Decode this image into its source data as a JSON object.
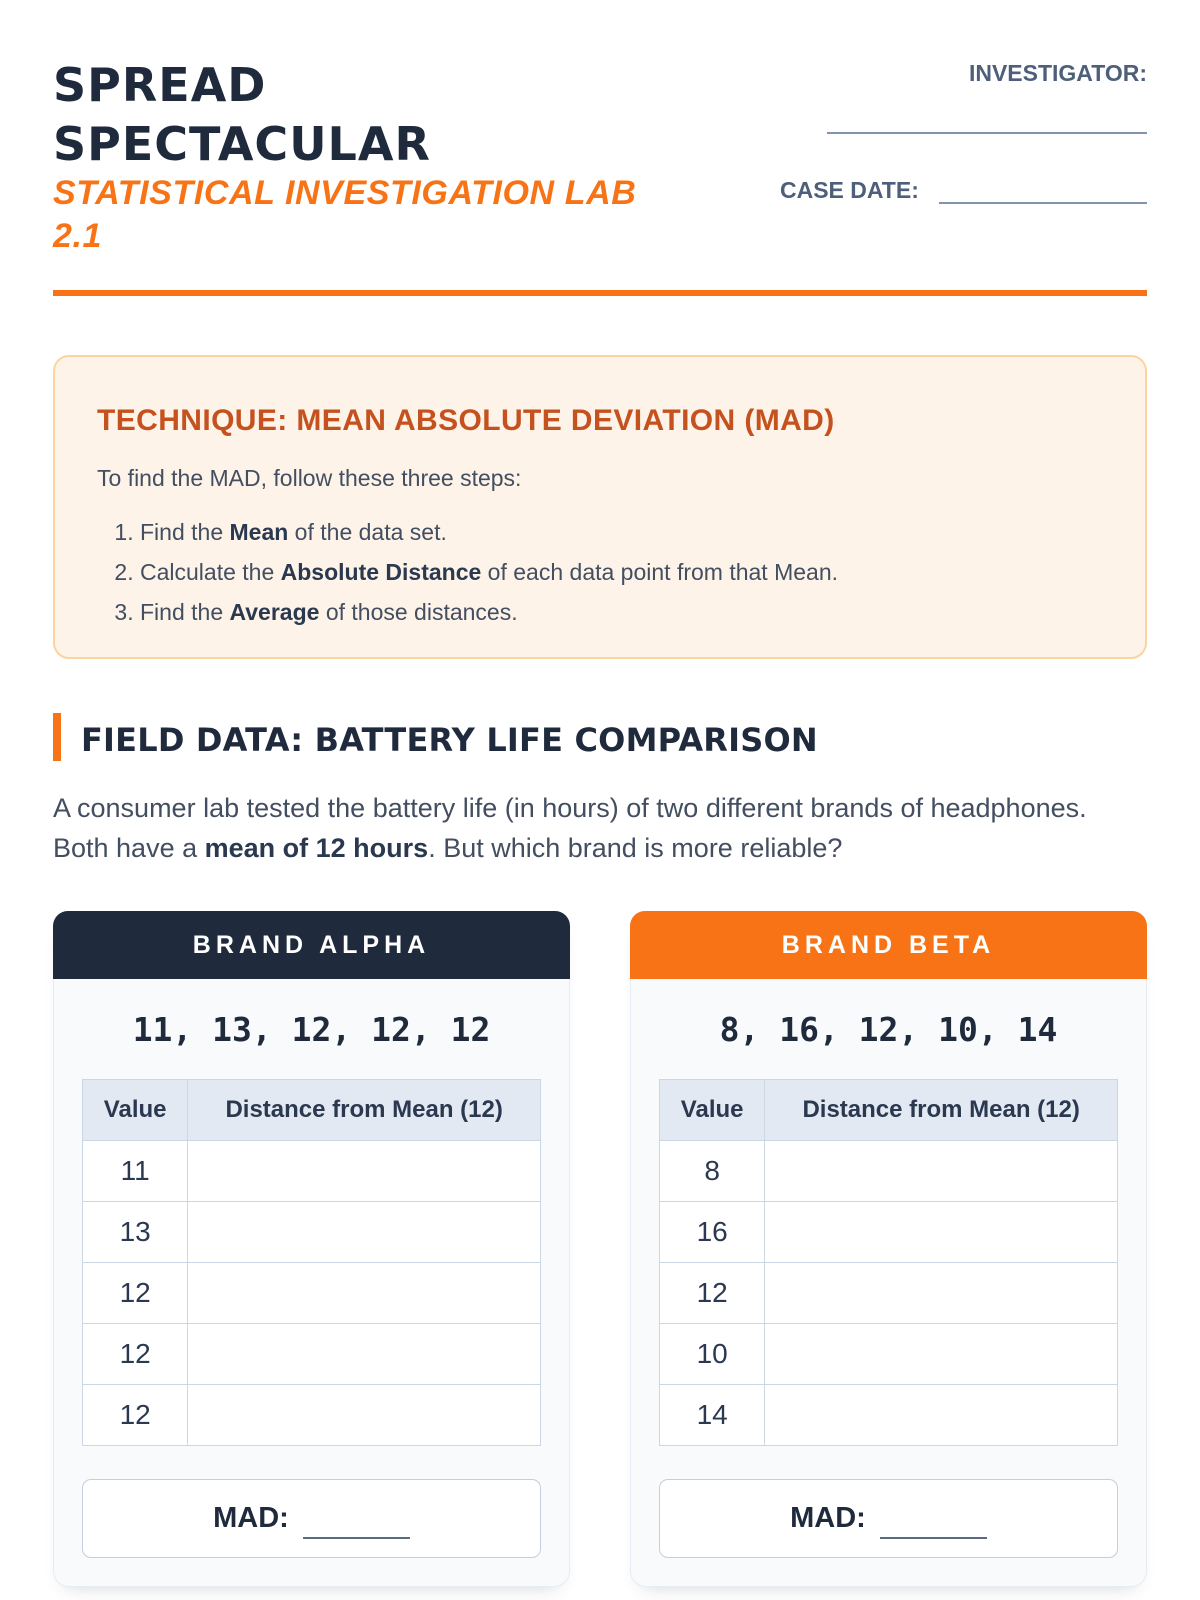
{
  "header": {
    "title": "SPREAD SPECTACULAR",
    "subtitle": "STATISTICAL INVESTIGATION LAB 2.1",
    "investigator_label": "INVESTIGATOR:",
    "case_date_label": "CASE DATE:"
  },
  "technique": {
    "title": "TECHNIQUE: MEAN ABSOLUTE DEVIATION (MAD)",
    "intro": "To find the MAD, follow these three steps:",
    "steps": [
      {
        "prefix": "Find the ",
        "bold": "Mean",
        "suffix": " of the data set."
      },
      {
        "prefix": "Calculate the ",
        "bold": "Absolute Distance",
        "suffix": " of each data point from that Mean."
      },
      {
        "prefix": "Find the ",
        "bold": "Average",
        "suffix": " of those distances."
      }
    ]
  },
  "field_data": {
    "heading": "FIELD DATA: BATTERY LIFE COMPARISON",
    "intro_prefix": "A consumer lab tested the battery life (in hours) of two different brands of headphones. Both have a ",
    "intro_bold": "mean of 12 hours",
    "intro_suffix": ". But which brand is more reliable?"
  },
  "table": {
    "value_header": "Value",
    "distance_header": "Distance from Mean (12)",
    "mad_label": "MAD:"
  },
  "cards": [
    {
      "name": "BRAND ALPHA",
      "theme": "navy",
      "values_display": "11, 13, 12, 12, 12",
      "values": [
        11,
        13,
        12,
        12,
        12
      ]
    },
    {
      "name": "BRAND BETA",
      "theme": "orange",
      "values_display": "8, 16, 12, 10, 14",
      "values": [
        8,
        16,
        12,
        10,
        14
      ]
    }
  ],
  "colors": {
    "navy": "#1f2a3c",
    "orange": "#f87316",
    "rust": "#c5511f",
    "cream": "#fdf3e8"
  }
}
